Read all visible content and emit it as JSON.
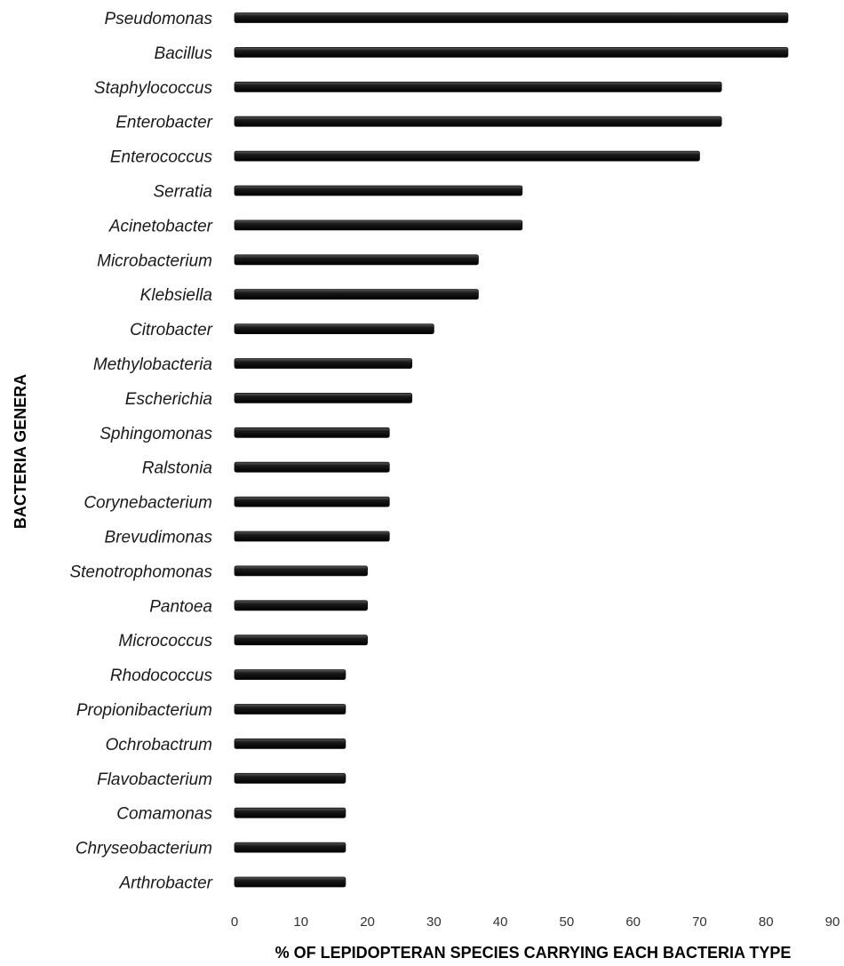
{
  "chart_data": {
    "type": "bar",
    "orientation": "horizontal",
    "xlabel": "% OF LEPIDOPTERAN SPECIES CARRYING EACH BACTERIA TYPE",
    "ylabel": "BACTERIA GENERA",
    "xlim": [
      0,
      90
    ],
    "xticks": [
      "0",
      "10",
      "20",
      "30",
      "40",
      "50",
      "60",
      "70",
      "80",
      "90"
    ],
    "grid": false,
    "bar_color": "#111111",
    "categories": [
      "Pseudomonas",
      "Bacillus",
      "Staphylococcus",
      "Enterobacter",
      "Enterococcus",
      "Serratia",
      "Acinetobacter",
      "Microbacterium",
      "Klebsiella",
      "Citrobacter",
      "Methylobacteria",
      "Escherichia",
      "Sphingomonas",
      "Ralstonia",
      "Corynebacterium",
      "Brevudimonas",
      "Stenotrophomonas",
      "Pantoea",
      "Micrococcus",
      "Rhodococcus",
      "Propionibacterium",
      "Ochrobactrum",
      "Flavobacterium",
      "Comamonas",
      "Chryseobacterium",
      "Arthrobacter"
    ],
    "values": [
      83.3,
      83.3,
      73.3,
      73.3,
      70.0,
      43.3,
      43.3,
      36.7,
      36.7,
      30.0,
      26.7,
      26.7,
      23.3,
      23.3,
      23.3,
      23.3,
      20.0,
      20.0,
      20.0,
      16.7,
      16.7,
      16.7,
      16.7,
      16.7,
      16.7,
      16.7
    ]
  }
}
